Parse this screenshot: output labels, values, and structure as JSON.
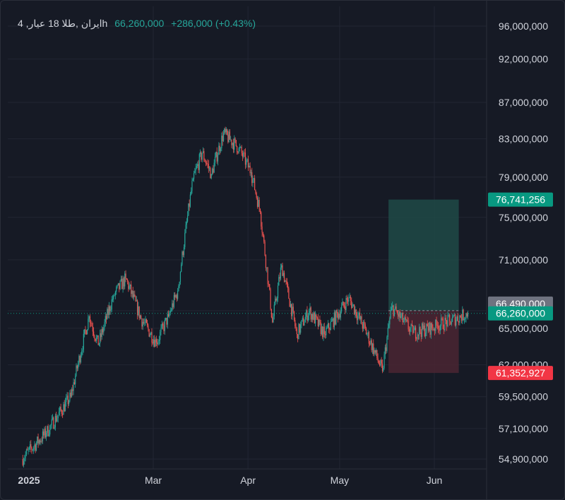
{
  "legend": {
    "symbol": "ایران ,طلا 18 عیار, 4h",
    "price": "66,260,000",
    "change": "+286,000 (+0.43%)"
  },
  "colors": {
    "background": "#161a25",
    "grid": "#222633",
    "up": "#26a69a",
    "down": "#ef5350",
    "axis_text": "#d1d4dc",
    "profit_zone": "#1f4a47",
    "loss_zone": "#4a2632",
    "current_price_label": "#089981",
    "target_label": "#089981",
    "stop_label": "#f23645",
    "entry_label": "#6f7380"
  },
  "chart_data": {
    "type": "candlestick",
    "x_axis": {
      "ticks": [
        "2025",
        "Mar",
        "Apr",
        "May",
        "Jun"
      ],
      "range": [
        "2025-01-01",
        "2025-06-16"
      ]
    },
    "y_axis": {
      "scale": "log",
      "ticks": [
        "96,000,000",
        "92,000,000",
        "87,000,000",
        "83,000,000",
        "79,000,000",
        "75,000,000",
        "71,000,000",
        "66,490,000",
        "65,000,000",
        "62,000,000",
        "59,500,000",
        "57,100,000",
        "54,900,000"
      ],
      "range": [
        54900000,
        96000000
      ]
    },
    "series": [
      {
        "close_path": [
          [
            "2025-01-17",
            54900000
          ],
          [
            "2025-01-25",
            56800000
          ],
          [
            "2025-02-02",
            59500000
          ],
          [
            "2025-02-08",
            66000000
          ],
          [
            "2025-02-11",
            63600000
          ],
          [
            "2025-02-16",
            67800000
          ],
          [
            "2025-02-20",
            69300000
          ],
          [
            "2025-02-25",
            65800000
          ],
          [
            "2025-03-02",
            63800000
          ],
          [
            "2025-03-06",
            66000000
          ],
          [
            "2025-03-09",
            68200000
          ],
          [
            "2025-03-14",
            78800000
          ],
          [
            "2025-03-17",
            81500000
          ],
          [
            "2025-03-20",
            79300000
          ],
          [
            "2025-03-24",
            83600000
          ],
          [
            "2025-03-29",
            82000000
          ],
          [
            "2025-04-02",
            79500000
          ],
          [
            "2025-04-05",
            75500000
          ],
          [
            "2025-04-09",
            65500000
          ],
          [
            "2025-04-12",
            70500000
          ],
          [
            "2025-04-17",
            64500000
          ],
          [
            "2025-04-21",
            66500000
          ],
          [
            "2025-04-26",
            64500000
          ],
          [
            "2025-05-04",
            67600000
          ],
          [
            "2025-05-10",
            64500000
          ],
          [
            "2025-05-15",
            61500000
          ],
          [
            "2025-05-18",
            66800000
          ],
          [
            "2025-05-25",
            64600000
          ],
          [
            "2025-06-02",
            65200000
          ],
          [
            "2025-06-06",
            65600000
          ],
          [
            "2025-06-12",
            66260000
          ]
        ]
      }
    ],
    "position_tool": {
      "type": "long",
      "start": "2025-05-17",
      "end": "2025-06-09",
      "target": 76741256,
      "entry": 66490000,
      "stop": 61352927
    },
    "current_price": 66260000,
    "price_labels": [
      "76,741,256",
      "66,490,000",
      "66,260,000",
      "61,352,927"
    ],
    "grid": true
  }
}
